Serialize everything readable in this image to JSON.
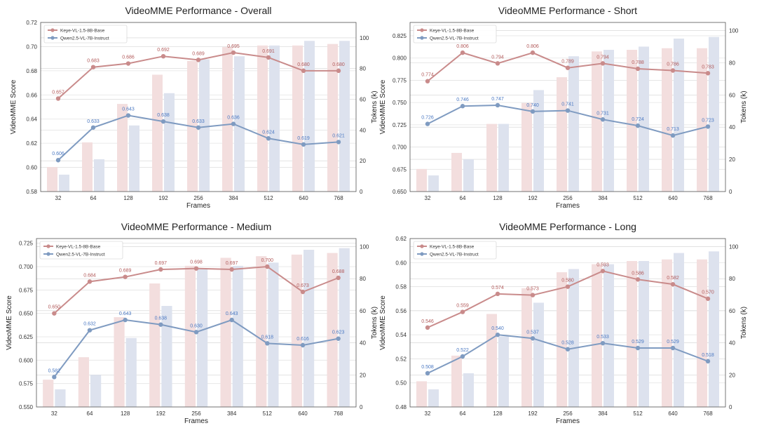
{
  "chart_data": [
    {
      "type": "bar+line",
      "title": "VideoMME Performance - Overall",
      "xlabel": "Frames",
      "ylabel": "VideoMME Score",
      "y2label": "Tokens (k)",
      "categories": [
        "32",
        "64",
        "128",
        "192",
        "256",
        "384",
        "512",
        "640",
        "768"
      ],
      "ylim": [
        0.58,
        0.72
      ],
      "yticks": [
        "0.58",
        "0.60",
        "0.62",
        "0.64",
        "0.66",
        "0.68",
        "0.70",
        "0.72"
      ],
      "y2lim": [
        0,
        110
      ],
      "y2ticks": [
        "0",
        "20",
        "40",
        "60",
        "80",
        "100"
      ],
      "grid": true,
      "legend": "top-left",
      "series": [
        {
          "name": "Keye-VL-1.5-8B-Base",
          "color": "#c98b8b",
          "labelColor": "#b25a5a",
          "values": [
            0.657,
            0.683,
            0.686,
            0.692,
            0.689,
            0.695,
            0.691,
            0.68,
            0.68
          ],
          "labels": [
            "0.657",
            "0.683",
            "0.686",
            "0.692",
            "0.689",
            "0.695",
            "0.691",
            "0.680",
            "0.680"
          ],
          "tokens": [
            16,
            32,
            57,
            76,
            85,
            94,
            95,
            95,
            96
          ]
        },
        {
          "name": "Qwen2.5-VL-7B-Instruct",
          "color": "#7f9bc1",
          "labelColor": "#4a78c2",
          "values": [
            0.606,
            0.633,
            0.643,
            0.638,
            0.633,
            0.636,
            0.624,
            0.619,
            0.621
          ],
          "labels": [
            "0.606",
            "0.633",
            "0.643",
            "0.638",
            "0.633",
            "0.636",
            "0.624",
            "0.619",
            "0.621"
          ],
          "tokens": [
            11,
            21,
            43,
            64,
            86,
            88,
            95,
            98,
            98
          ]
        }
      ]
    },
    {
      "type": "bar+line",
      "title": "VideoMME Performance - Short",
      "xlabel": "Frames",
      "ylabel": "VideoMME Score",
      "y2label": "Tokens (k)",
      "categories": [
        "32",
        "64",
        "128",
        "192",
        "256",
        "384",
        "512",
        "640",
        "768"
      ],
      "ylim": [
        0.65,
        0.84
      ],
      "yticks": [
        "0.650",
        "0.675",
        "0.700",
        "0.725",
        "0.750",
        "0.775",
        "0.800",
        "0.825"
      ],
      "y2lim": [
        0,
        105
      ],
      "y2ticks": [
        "0",
        "20",
        "40",
        "60",
        "80",
        "100"
      ],
      "grid": true,
      "legend": "top-left",
      "series": [
        {
          "name": "Keye-VL-1.5-8B-Base",
          "color": "#c98b8b",
          "labelColor": "#b25a5a",
          "values": [
            0.774,
            0.806,
            0.794,
            0.806,
            0.789,
            0.794,
            0.788,
            0.786,
            0.783
          ],
          "labels": [
            "0.774",
            "0.806",
            "0.794",
            "0.806",
            "0.789",
            "0.794",
            "0.788",
            "0.786",
            "0.783"
          ],
          "tokens": [
            14,
            24,
            42,
            55,
            71,
            87,
            88,
            89,
            89
          ]
        },
        {
          "name": "Qwen2.5-VL-7B-Instruct",
          "color": "#7f9bc1",
          "labelColor": "#4a78c2",
          "values": [
            0.726,
            0.746,
            0.747,
            0.74,
            0.741,
            0.731,
            0.724,
            0.713,
            0.723
          ],
          "labels": [
            "0.726",
            "0.746",
            "0.747",
            "0.740",
            "0.741",
            "0.731",
            "0.724",
            "0.713",
            "0.723"
          ],
          "tokens": [
            10,
            20,
            42,
            63,
            84,
            88,
            90,
            95,
            96
          ]
        }
      ]
    },
    {
      "type": "bar+line",
      "title": "VideoMME Performance - Medium",
      "xlabel": "Frames",
      "ylabel": "VideoMME Score",
      "y2label": "Tokens (k)",
      "categories": [
        "32",
        "64",
        "128",
        "192",
        "256",
        "384",
        "512",
        "640",
        "768"
      ],
      "ylim": [
        0.55,
        0.73
      ],
      "yticks": [
        "0.550",
        "0.575",
        "0.600",
        "0.625",
        "0.650",
        "0.675",
        "0.700",
        "0.725"
      ],
      "y2lim": [
        0,
        105
      ],
      "y2ticks": [
        "0",
        "20",
        "40",
        "60",
        "80",
        "100"
      ],
      "grid": true,
      "legend": "top-left",
      "series": [
        {
          "name": "Keye-VL-1.5-8B-Base",
          "color": "#c98b8b",
          "labelColor": "#b25a5a",
          "values": [
            0.65,
            0.684,
            0.689,
            0.697,
            0.698,
            0.697,
            0.7,
            0.673,
            0.688
          ],
          "labels": [
            "0.650",
            "0.684",
            "0.689",
            "0.697",
            "0.698",
            "0.697",
            "0.700",
            "0.673",
            "0.688"
          ],
          "tokens": [
            17,
            31,
            56,
            77,
            88,
            93,
            94,
            95,
            96
          ]
        },
        {
          "name": "Qwen2.5-VL-7B-Instruct",
          "color": "#7f9bc1",
          "labelColor": "#4a78c2",
          "values": [
            0.582,
            0.632,
            0.643,
            0.638,
            0.63,
            0.643,
            0.618,
            0.616,
            0.623
          ],
          "labels": [
            "0.582",
            "0.632",
            "0.643",
            "0.638",
            "0.630",
            "0.643",
            "0.618",
            "0.616",
            "0.623"
          ],
          "tokens": [
            11,
            20,
            43,
            63,
            86,
            88,
            90,
            98,
            99
          ]
        }
      ]
    },
    {
      "type": "bar+line",
      "title": "VideoMME Performance - Long",
      "xlabel": "Frames",
      "ylabel": "VideoMME Score",
      "y2label": "Tokens (k)",
      "categories": [
        "32",
        "64",
        "128",
        "192",
        "256",
        "384",
        "512",
        "640",
        "768"
      ],
      "ylim": [
        0.48,
        0.62
      ],
      "yticks": [
        "0.48",
        "0.50",
        "0.52",
        "0.54",
        "0.56",
        "0.58",
        "0.60",
        "0.62"
      ],
      "y2lim": [
        0,
        105
      ],
      "y2ticks": [
        "0",
        "20",
        "40",
        "60",
        "80",
        "100"
      ],
      "grid": true,
      "legend": "top-left",
      "series": [
        {
          "name": "Keye-VL-1.5-8B-Base",
          "color": "#c98b8b",
          "labelColor": "#b25a5a",
          "values": [
            0.546,
            0.559,
            0.574,
            0.573,
            0.58,
            0.593,
            0.586,
            0.582,
            0.57
          ],
          "labels": [
            "0.546",
            "0.559",
            "0.574",
            "0.573",
            "0.580",
            "0.593",
            "0.586",
            "0.582",
            "0.570"
          ],
          "tokens": [
            16,
            32,
            58,
            74,
            84,
            89,
            91,
            92,
            92
          ]
        },
        {
          "name": "Qwen2.5-VL-7B-Instruct",
          "color": "#7f9bc1",
          "labelColor": "#4a78c2",
          "values": [
            0.508,
            0.522,
            0.54,
            0.537,
            0.528,
            0.533,
            0.529,
            0.529,
            0.518
          ],
          "labels": [
            "0.508",
            "0.522",
            "0.540",
            "0.537",
            "0.528",
            "0.533",
            "0.529",
            "0.529",
            "0.518"
          ],
          "tokens": [
            11,
            21,
            44,
            65,
            86,
            89,
            91,
            96,
            97
          ]
        }
      ]
    }
  ]
}
